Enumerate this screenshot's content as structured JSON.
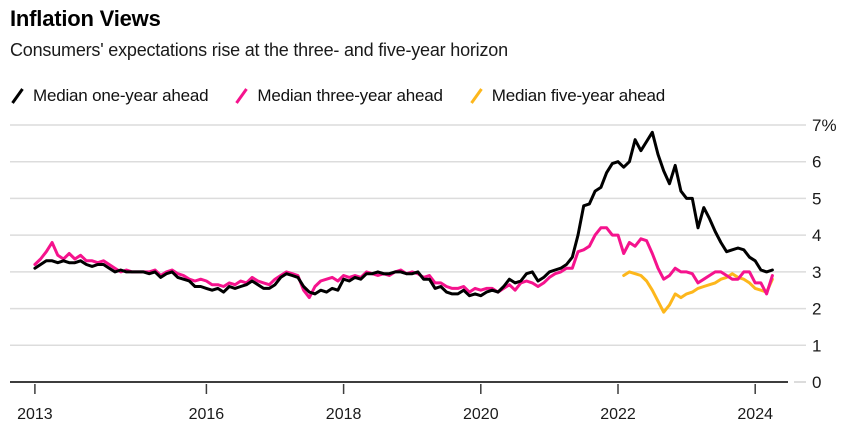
{
  "header": {
    "title": "Inflation Views",
    "subtitle": "Consumers' expectations rise at the three- and five-year horizon"
  },
  "chart_data": {
    "type": "line",
    "title": "Inflation Views",
    "subtitle": "Consumers' expectations rise at the three- and five-year horizon",
    "unit": "%",
    "grid": true,
    "legend_position": "top",
    "y_axis": {
      "min": 0,
      "max": 7,
      "tick_step": 1,
      "position": "right",
      "ticks": [
        {
          "value": 7,
          "label": "7%"
        },
        {
          "value": 6,
          "label": "6"
        },
        {
          "value": 5,
          "label": "5"
        },
        {
          "value": 4,
          "label": "4"
        },
        {
          "value": 3,
          "label": "3"
        },
        {
          "value": 2,
          "label": "2"
        },
        {
          "value": 1,
          "label": "1"
        },
        {
          "value": 0,
          "label": "0"
        }
      ]
    },
    "x_axis": {
      "domain": [
        2013.5,
        2024.25
      ],
      "ticks": [
        {
          "t": 2013.5,
          "label": "2013"
        },
        {
          "t": 2016,
          "label": "2016"
        },
        {
          "t": 2018,
          "label": "2018"
        },
        {
          "t": 2020,
          "label": "2020"
        },
        {
          "t": 2022,
          "label": "2022"
        },
        {
          "t": 2024,
          "label": "2024"
        }
      ]
    },
    "style": {
      "grid_color": "#dcdcdc",
      "axis_color": "#3d3d3d",
      "label_color": "#1a1a1a"
    },
    "series": [
      {
        "id": "one-year",
        "name": "Median one-year ahead",
        "color": "#000000",
        "frequency": "monthly",
        "start_year": 2013,
        "start_month": 6,
        "values": [
          3.1,
          3.2,
          3.3,
          3.3,
          3.25,
          3.3,
          3.25,
          3.25,
          3.3,
          3.2,
          3.15,
          3.2,
          3.2,
          3.1,
          3.0,
          3.05,
          3.0,
          3.0,
          3.0,
          3.0,
          2.95,
          3.0,
          2.85,
          2.95,
          3.0,
          2.85,
          2.8,
          2.75,
          2.6,
          2.6,
          2.55,
          2.5,
          2.55,
          2.45,
          2.6,
          2.55,
          2.6,
          2.65,
          2.75,
          2.65,
          2.55,
          2.55,
          2.65,
          2.85,
          2.95,
          2.9,
          2.85,
          2.6,
          2.45,
          2.4,
          2.5,
          2.45,
          2.55,
          2.5,
          2.8,
          2.75,
          2.85,
          2.8,
          2.95,
          2.95,
          3.0,
          2.95,
          2.95,
          3.0,
          3.0,
          2.95,
          2.95,
          3.0,
          2.8,
          2.8,
          2.55,
          2.6,
          2.45,
          2.4,
          2.4,
          2.5,
          2.35,
          2.4,
          2.35,
          2.45,
          2.5,
          2.45,
          2.6,
          2.8,
          2.7,
          2.75,
          2.95,
          3.0,
          2.75,
          2.85,
          3.0,
          3.05,
          3.1,
          3.2,
          3.4,
          4.0,
          4.8,
          4.85,
          5.2,
          5.3,
          5.7,
          5.95,
          6.0,
          5.85,
          6.0,
          6.6,
          6.3,
          6.55,
          6.8,
          6.2,
          5.75,
          5.4,
          5.9,
          5.2,
          5.0,
          5.0,
          4.2,
          4.75,
          4.45,
          4.1,
          3.8,
          3.55,
          3.6,
          3.65,
          3.6,
          3.4,
          3.3,
          3.05,
          3.0,
          3.05
        ]
      },
      {
        "id": "three-year",
        "name": "Median three-year ahead",
        "color": "#f5138d",
        "frequency": "monthly",
        "start_year": 2013,
        "start_month": 6,
        "values": [
          3.2,
          3.35,
          3.55,
          3.8,
          3.45,
          3.35,
          3.5,
          3.35,
          3.45,
          3.3,
          3.3,
          3.25,
          3.3,
          3.2,
          3.1,
          3.0,
          3.05,
          3.0,
          3.0,
          3.0,
          3.0,
          3.05,
          2.9,
          3.0,
          3.05,
          2.95,
          2.9,
          2.8,
          2.75,
          2.8,
          2.75,
          2.65,
          2.65,
          2.6,
          2.7,
          2.65,
          2.75,
          2.7,
          2.85,
          2.75,
          2.7,
          2.65,
          2.8,
          2.9,
          3.0,
          2.95,
          2.9,
          2.5,
          2.3,
          2.6,
          2.75,
          2.8,
          2.85,
          2.75,
          2.9,
          2.85,
          2.9,
          2.85,
          3.0,
          2.95,
          2.9,
          2.95,
          2.9,
          3.0,
          3.05,
          2.95,
          3.0,
          2.95,
          2.85,
          2.9,
          2.7,
          2.7,
          2.6,
          2.55,
          2.55,
          2.6,
          2.45,
          2.55,
          2.5,
          2.55,
          2.55,
          2.45,
          2.55,
          2.65,
          2.5,
          2.7,
          2.75,
          2.7,
          2.6,
          2.7,
          2.85,
          2.95,
          3.0,
          3.1,
          3.1,
          3.55,
          3.6,
          3.7,
          4.0,
          4.2,
          4.2,
          4.0,
          4.0,
          3.5,
          3.8,
          3.7,
          3.9,
          3.85,
          3.5,
          3.1,
          2.8,
          2.9,
          3.1,
          3.0,
          3.0,
          2.95,
          2.7,
          2.8,
          2.9,
          3.0,
          3.0,
          2.9,
          2.8,
          2.8,
          3.0,
          3.0,
          2.7,
          2.7,
          2.4,
          2.9
        ]
      },
      {
        "id": "five-year",
        "name": "Median five-year ahead",
        "color": "#fdb71c",
        "frequency": "monthly",
        "start_year": 2022,
        "start_month": 1,
        "values": [
          2.9,
          3.0,
          2.95,
          2.9,
          2.75,
          2.5,
          2.2,
          1.9,
          2.1,
          2.4,
          2.3,
          2.4,
          2.45,
          2.55,
          2.6,
          2.65,
          2.7,
          2.8,
          2.85,
          2.95,
          2.85,
          2.8,
          2.7,
          2.55,
          2.5,
          2.45,
          2.8
        ]
      }
    ]
  }
}
